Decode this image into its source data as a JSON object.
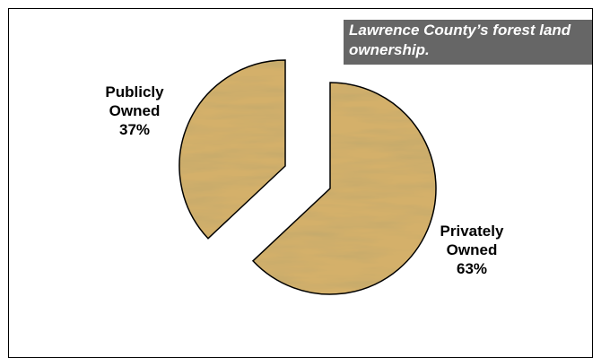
{
  "chart_data": {
    "type": "pie",
    "title": "Lawrence County’s forest land ownership.",
    "slices": [
      {
        "label_line1": "Privately",
        "label_line2": "Owned",
        "percent_label": "63%",
        "value": 63
      },
      {
        "label_line1": "Publicly",
        "label_line2": "Owned",
        "percent_label": "37%",
        "value": 37
      }
    ],
    "exploded": true,
    "fill": "wood-grain",
    "colors": {
      "wood_base": "#d4b06a",
      "wood_dark": "#a8823e",
      "wood_light": "#ecd59a",
      "outline": "#000000",
      "title_bg": "#666666",
      "title_text": "#ffffff"
    }
  }
}
